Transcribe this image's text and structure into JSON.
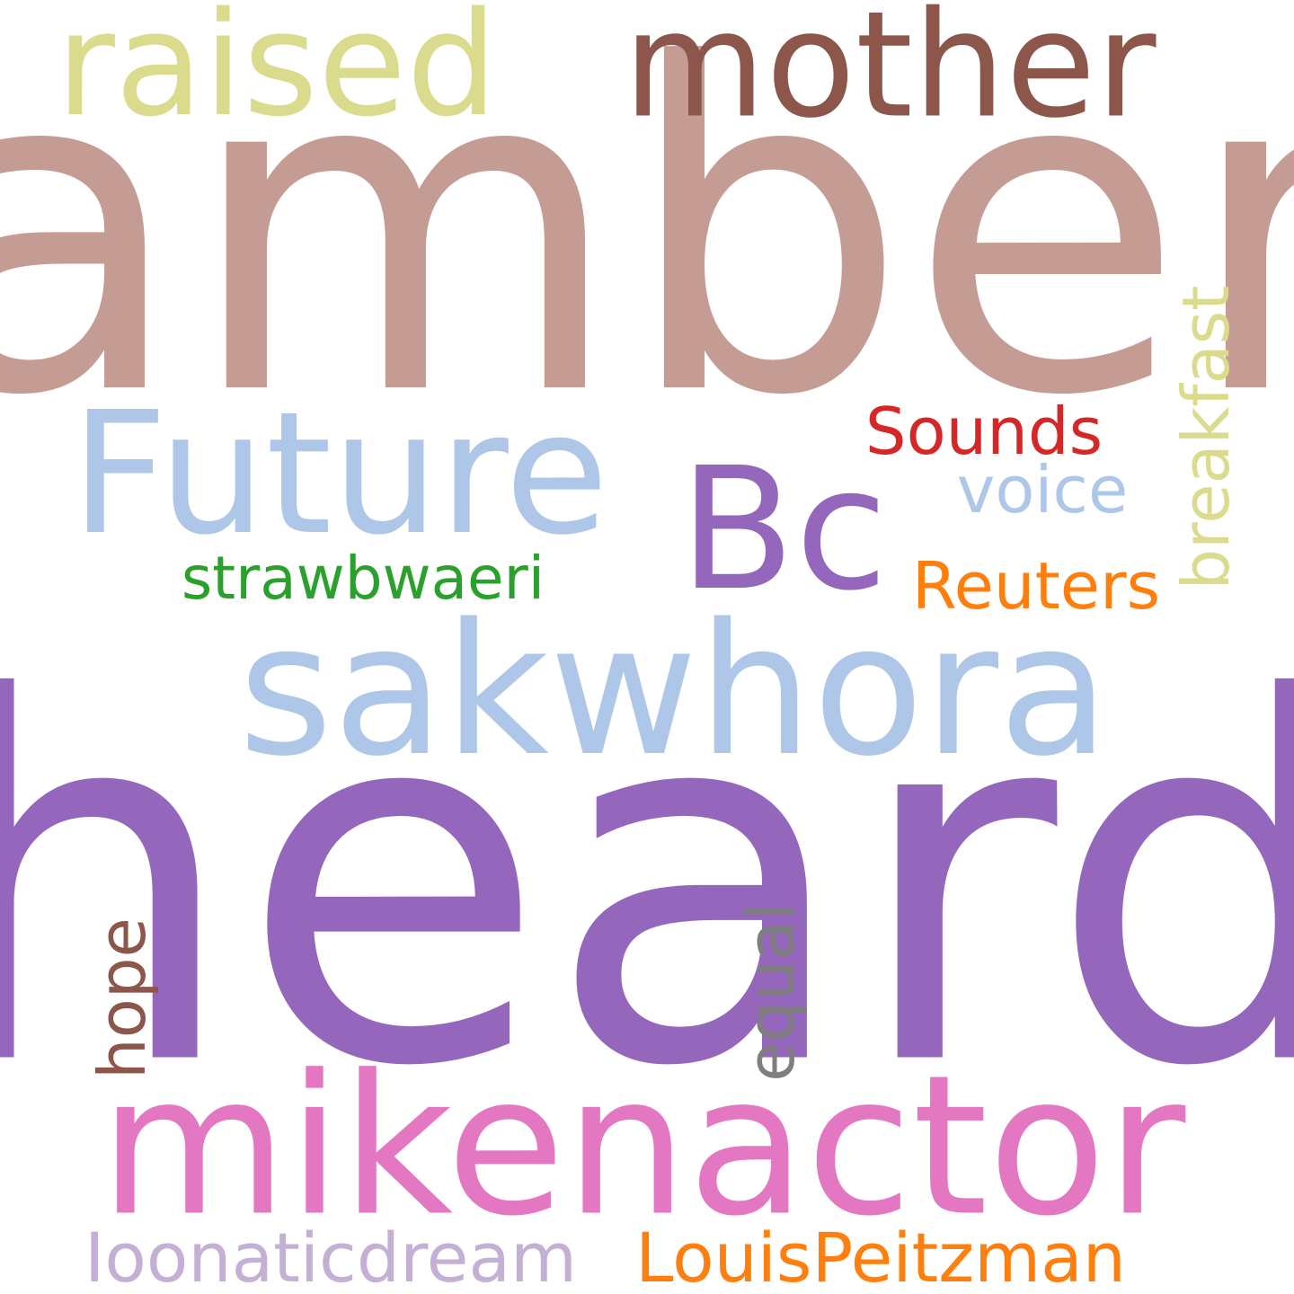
{
  "words": [
    {
      "key": "amber",
      "text": "amber",
      "color": "#c49c94"
    },
    {
      "key": "heard",
      "text": "heard",
      "color": "#9467bd"
    },
    {
      "key": "mikenactor",
      "text": "mikenactor",
      "color": "#e377c2"
    },
    {
      "key": "sakwhora",
      "text": "sakwhora",
      "color": "#aec7e8"
    },
    {
      "key": "future",
      "text": "Future",
      "color": "#aec7e8"
    },
    {
      "key": "bc",
      "text": "Bc",
      "color": "#9467bd"
    },
    {
      "key": "raised",
      "text": "raised",
      "color": "#dbdb8d"
    },
    {
      "key": "mother",
      "text": "mother",
      "color": "#8c564b"
    },
    {
      "key": "sounds",
      "text": "Sounds",
      "color": "#d62728"
    },
    {
      "key": "voice",
      "text": "voice",
      "color": "#aec7e8"
    },
    {
      "key": "breakfast",
      "text": "breakfast",
      "color": "#dbdb8d"
    },
    {
      "key": "reuters",
      "text": "Reuters",
      "color": "#ff7f0e"
    },
    {
      "key": "strawbwaeri",
      "text": "strawbwaeri",
      "color": "#2ca02c"
    },
    {
      "key": "hope",
      "text": "hope",
      "color": "#8c564b"
    },
    {
      "key": "equal",
      "text": "equal",
      "color": "#7f7f7f"
    },
    {
      "key": "ioonaticdream",
      "text": "Ioonaticdream",
      "color": "#c5b0d5"
    },
    {
      "key": "louispeitzman",
      "text": "LouisPeitzman",
      "color": "#ff7f0e"
    }
  ]
}
